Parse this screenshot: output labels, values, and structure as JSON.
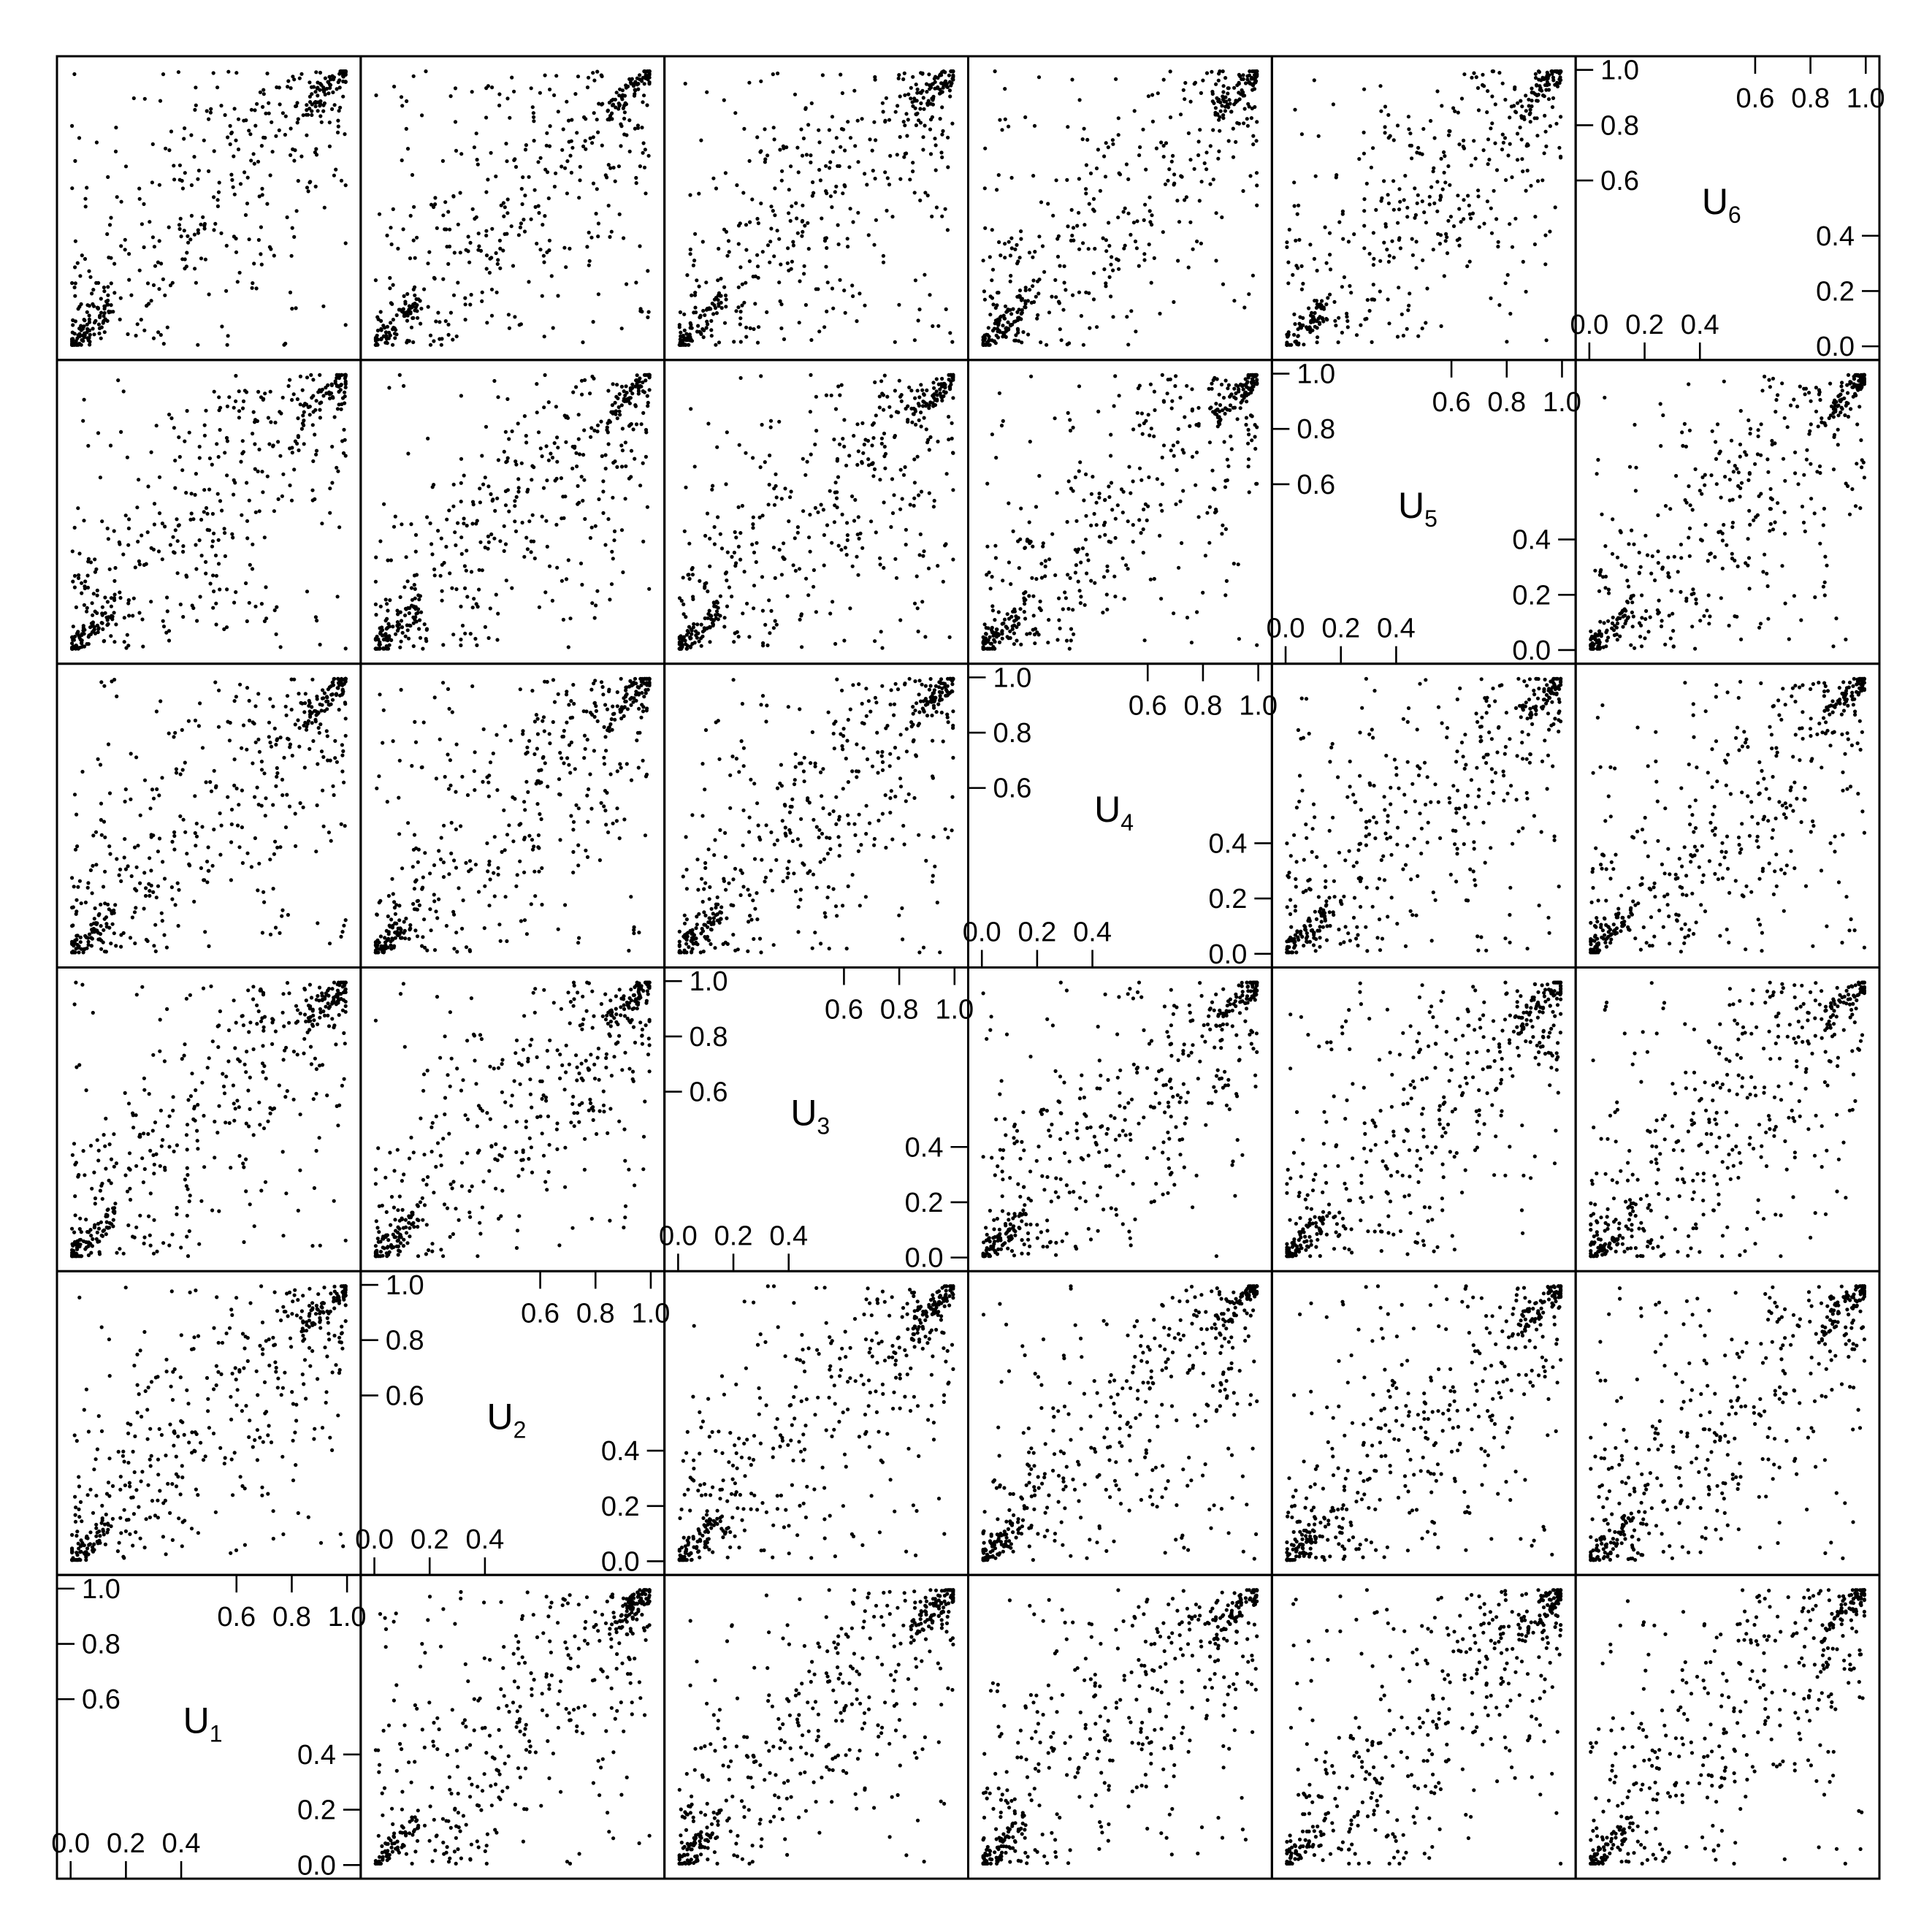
{
  "chart_data": {
    "type": "scatter",
    "kind": "scatterplot-matrix",
    "variables": [
      {
        "name": "U",
        "sub": "1"
      },
      {
        "name": "U",
        "sub": "2"
      },
      {
        "name": "U",
        "sub": "3"
      },
      {
        "name": "U",
        "sub": "4"
      },
      {
        "name": "U",
        "sub": "5"
      },
      {
        "name": "U",
        "sub": "6"
      }
    ],
    "n_points_per_panel": 500,
    "axis_range": [
      0,
      1
    ],
    "tick_values": [
      0.0,
      0.2,
      0.4,
      0.6,
      0.8,
      1.0
    ],
    "tick_labels": [
      "0.0",
      "0.2",
      "0.4",
      "0.6",
      "0.8",
      "1.0"
    ],
    "low_tick_labels": [
      "0.0",
      "0.2",
      "0.4"
    ],
    "high_tick_labels": [
      "0.6",
      "0.8",
      "1.0"
    ],
    "diagonal_layout": "bottom-left to top-right",
    "dependence": "strong positive, clustered near (0,0) and (1,1)",
    "grid": false,
    "legend": "none",
    "point_color": "#000000"
  }
}
